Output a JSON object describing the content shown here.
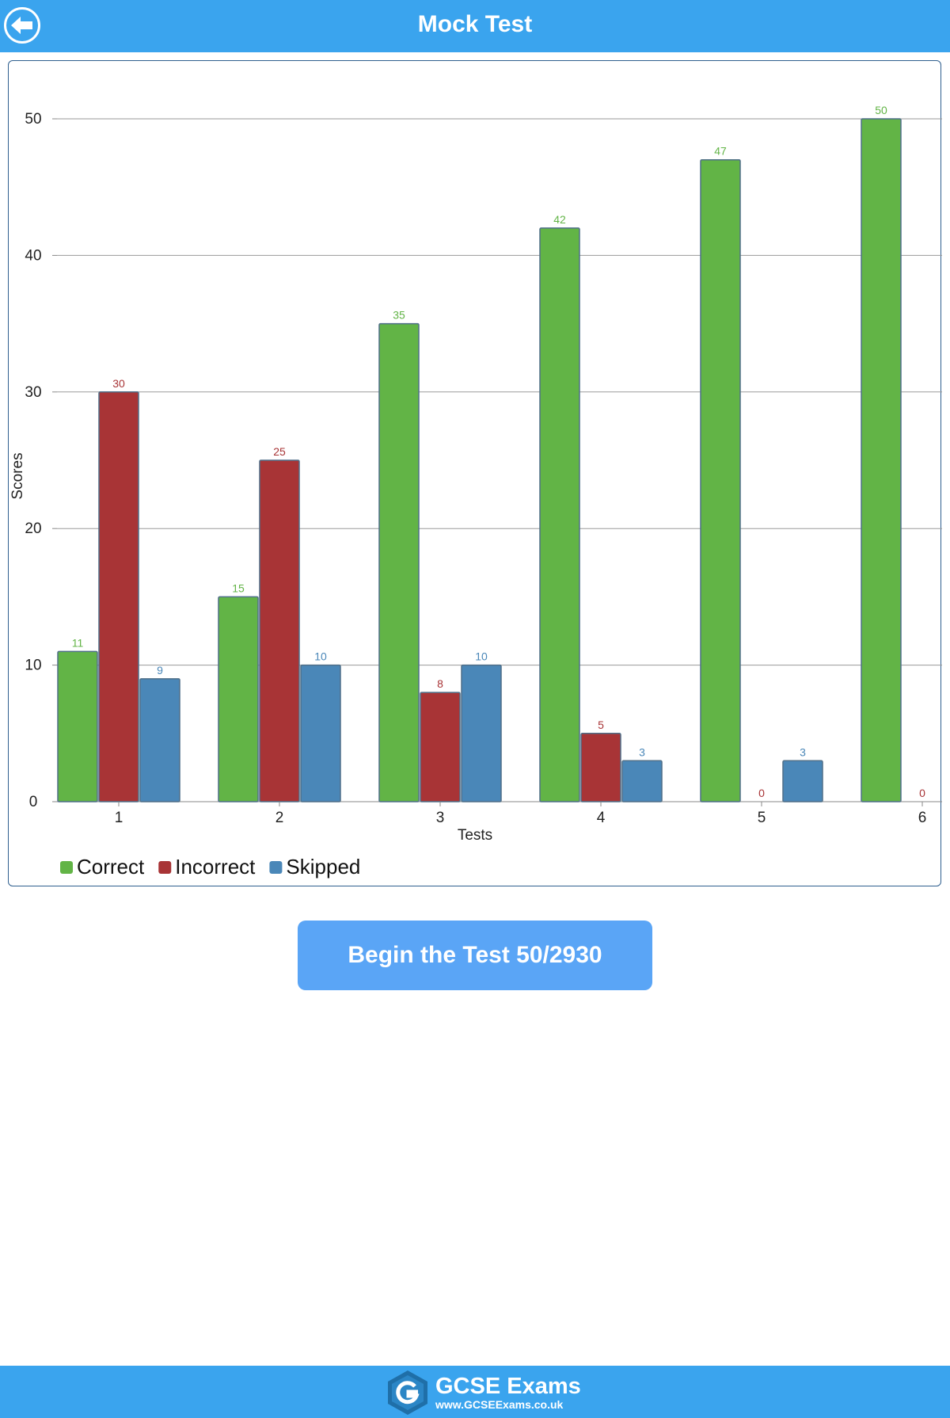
{
  "header": {
    "title": "Mock Test",
    "back_icon": "back-arrow-circle-icon"
  },
  "chart_data": {
    "type": "bar",
    "title": "",
    "xlabel": "Tests",
    "ylabel": "Scores",
    "categories": [
      "1",
      "2",
      "3",
      "4",
      "5",
      "6"
    ],
    "ylim": [
      0,
      50
    ],
    "yticks": [
      0,
      10,
      20,
      30,
      40,
      50
    ],
    "grid": true,
    "legend_position": "bottom-left",
    "series": [
      {
        "name": "Correct",
        "color": "#62b446",
        "values": [
          11,
          15,
          35,
          42,
          47,
          50
        ]
      },
      {
        "name": "Incorrect",
        "color": "#a83436",
        "values": [
          30,
          25,
          8,
          5,
          0,
          0
        ]
      },
      {
        "name": "Skipped",
        "color": "#4a87b8",
        "values": [
          9,
          10,
          10,
          3,
          3,
          null
        ]
      }
    ]
  },
  "actions": {
    "begin_label": "Begin the Test 50/2930"
  },
  "footer": {
    "logo_name": "GCSE Exams",
    "logo_url": "www.GCSEExams.co.uk",
    "logo_icon": "gcse-hexagon-logo-icon"
  },
  "colors": {
    "bar_header": "#3aa4ee",
    "button": "#5aa5f6"
  }
}
